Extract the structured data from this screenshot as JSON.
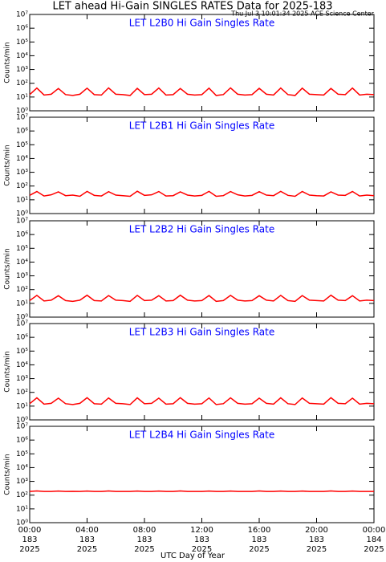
{
  "header": {
    "title": "LET ahead Hi-Gain SINGLES RATES Data for 2025-183",
    "timestamp": "Thu Jul  3 10:01:34 2025 ACE Science Center"
  },
  "x_axis": {
    "label": "UTC Day of Year",
    "xlim": [
      0,
      24
    ],
    "xticks": [
      {
        "value": 0,
        "label": "00:00"
      },
      {
        "value": 4,
        "label": "04:00"
      },
      {
        "value": 8,
        "label": "08:00"
      },
      {
        "value": 12,
        "label": "12:00"
      },
      {
        "value": 16,
        "label": "16:00"
      },
      {
        "value": 20,
        "label": "20:00"
      },
      {
        "value": 24,
        "label": "00:00"
      }
    ],
    "xtick_days": [
      "183",
      "183",
      "183",
      "183",
      "183",
      "183",
      "184"
    ],
    "xtick_years": [
      "2025",
      "2025",
      "2025",
      "2025",
      "2025",
      "2025",
      "2025"
    ]
  },
  "chart_data": [
    {
      "type": "line",
      "title": "LET L2B0 Hi Gain Singles Rate",
      "ylabel": "Counts/min",
      "log_y": true,
      "ylim": [
        1,
        10000000
      ],
      "yticks": [
        {
          "value": 1,
          "label": "10⁰"
        },
        {
          "value": 10,
          "label": "10¹"
        },
        {
          "value": 100,
          "label": "10²"
        },
        {
          "value": 1000,
          "label": "10³"
        },
        {
          "value": 10000,
          "label": "10⁴"
        },
        {
          "value": 100000,
          "label": "10⁵"
        },
        {
          "value": 1000000,
          "label": "10⁶"
        },
        {
          "value": 10000000,
          "label": "10⁷"
        }
      ],
      "x": [
        0,
        0.5,
        1,
        1.5,
        2,
        2.5,
        3,
        3.5,
        4,
        4.5,
        5,
        5.5,
        6,
        6.5,
        7,
        7.5,
        8,
        8.5,
        9,
        9.5,
        10,
        10.5,
        11,
        11.5,
        12,
        12.5,
        13,
        13.5,
        14,
        14.5,
        15,
        15.5,
        16,
        16.5,
        17,
        17.5,
        18,
        18.5,
        19,
        19.5,
        20,
        20.5,
        21,
        21.5,
        22,
        22.5,
        23,
        23.5,
        24
      ],
      "series": [
        {
          "color": "#ff0000",
          "values": [
            15,
            45,
            14,
            16,
            42,
            15,
            13,
            16,
            44,
            15,
            14,
            46,
            16,
            15,
            13,
            43,
            15,
            16,
            45,
            14,
            15,
            42,
            16,
            14,
            15,
            44,
            13,
            15,
            46,
            16,
            14,
            15,
            43,
            16,
            14,
            45,
            15,
            13,
            44,
            16,
            15,
            14,
            42,
            16,
            15,
            45,
            14,
            16,
            15
          ]
        }
      ]
    },
    {
      "type": "line",
      "title": "LET L2B1 Hi Gain Singles Rate",
      "ylabel": "Counts/min",
      "log_y": true,
      "ylim": [
        1,
        10000000
      ],
      "yticks": [
        {
          "value": 1,
          "label": "10⁰"
        },
        {
          "value": 10,
          "label": "10¹"
        },
        {
          "value": 100,
          "label": "10²"
        },
        {
          "value": 1000,
          "label": "10³"
        },
        {
          "value": 10000,
          "label": "10⁴"
        },
        {
          "value": 100000,
          "label": "10⁵"
        },
        {
          "value": 1000000,
          "label": "10⁶"
        },
        {
          "value": 10000000,
          "label": "10⁷"
        }
      ],
      "x": [
        0,
        0.5,
        1,
        1.5,
        2,
        2.5,
        3,
        3.5,
        4,
        4.5,
        5,
        5.5,
        6,
        6.5,
        7,
        7.5,
        8,
        8.5,
        9,
        9.5,
        10,
        10.5,
        11,
        11.5,
        12,
        12.5,
        13,
        13.5,
        14,
        14.5,
        15,
        15.5,
        16,
        16.5,
        17,
        17.5,
        18,
        18.5,
        19,
        19.5,
        20,
        20.5,
        21,
        21.5,
        22,
        22.5,
        23,
        23.5,
        24
      ],
      "series": [
        {
          "color": "#ff0000",
          "values": [
            21,
            40,
            19,
            23,
            38,
            20,
            22,
            18,
            41,
            21,
            19,
            39,
            22,
            20,
            18,
            42,
            21,
            23,
            40,
            19,
            20,
            38,
            22,
            19,
            21,
            41,
            18,
            20,
            40,
            23,
            19,
            21,
            39,
            22,
            20,
            41,
            21,
            18,
            40,
            22,
            20,
            19,
            38,
            22,
            21,
            40,
            19,
            22,
            20
          ]
        }
      ]
    },
    {
      "type": "line",
      "title": "LET L2B2 Hi Gain Singles Rate",
      "ylabel": "Counts/min",
      "log_y": true,
      "ylim": [
        1,
        10000000
      ],
      "yticks": [
        {
          "value": 1,
          "label": "10⁰"
        },
        {
          "value": 10,
          "label": "10¹"
        },
        {
          "value": 100,
          "label": "10²"
        },
        {
          "value": 1000,
          "label": "10³"
        },
        {
          "value": 10000,
          "label": "10⁴"
        },
        {
          "value": 100000,
          "label": "10⁵"
        },
        {
          "value": 1000000,
          "label": "10⁶"
        },
        {
          "value": 10000000,
          "label": "10⁷"
        }
      ],
      "x": [
        0,
        0.5,
        1,
        1.5,
        2,
        2.5,
        3,
        3.5,
        4,
        4.5,
        5,
        5.5,
        6,
        6.5,
        7,
        7.5,
        8,
        8.5,
        9,
        9.5,
        10,
        10.5,
        11,
        11.5,
        12,
        12.5,
        13,
        13.5,
        14,
        14.5,
        15,
        15.5,
        16,
        16.5,
        17,
        17.5,
        18,
        18.5,
        19,
        19.5,
        20,
        20.5,
        21,
        21.5,
        22,
        22.5,
        23,
        23.5,
        24
      ],
      "series": [
        {
          "color": "#ff0000",
          "values": [
            16,
            38,
            15,
            17,
            36,
            16,
            14,
            17,
            39,
            16,
            15,
            37,
            17,
            16,
            14,
            38,
            16,
            17,
            36,
            15,
            16,
            39,
            17,
            15,
            16,
            37,
            14,
            16,
            38,
            17,
            15,
            16,
            36,
            17,
            15,
            38,
            16,
            14,
            37,
            17,
            16,
            15,
            39,
            17,
            16,
            36,
            15,
            17,
            16
          ]
        }
      ]
    },
    {
      "type": "line",
      "title": "LET L2B3 Hi Gain Singles Rate",
      "ylabel": "Counts/min",
      "log_y": true,
      "ylim": [
        1,
        10000000
      ],
      "yticks": [
        {
          "value": 1,
          "label": "10⁰"
        },
        {
          "value": 10,
          "label": "10¹"
        },
        {
          "value": 100,
          "label": "10²"
        },
        {
          "value": 1000,
          "label": "10³"
        },
        {
          "value": 10000,
          "label": "10⁴"
        },
        {
          "value": 100000,
          "label": "10⁵"
        },
        {
          "value": 1000000,
          "label": "10⁶"
        },
        {
          "value": 10000000,
          "label": "10⁷"
        }
      ],
      "x": [
        0,
        0.5,
        1,
        1.5,
        2,
        2.5,
        3,
        3.5,
        4,
        4.5,
        5,
        5.5,
        6,
        6.5,
        7,
        7.5,
        8,
        8.5,
        9,
        9.5,
        10,
        10.5,
        11,
        11.5,
        12,
        12.5,
        13,
        13.5,
        14,
        14.5,
        15,
        15.5,
        16,
        16.5,
        17,
        17.5,
        18,
        18.5,
        19,
        19.5,
        20,
        20.5,
        21,
        21.5,
        22,
        22.5,
        23,
        23.5,
        24
      ],
      "series": [
        {
          "color": "#ff0000",
          "values": [
            15,
            40,
            14,
            16,
            38,
            15,
            13,
            16,
            41,
            15,
            14,
            39,
            16,
            15,
            13,
            40,
            15,
            16,
            38,
            14,
            15,
            41,
            16,
            14,
            15,
            39,
            13,
            15,
            40,
            16,
            14,
            15,
            38,
            16,
            14,
            40,
            15,
            13,
            39,
            16,
            15,
            14,
            41,
            16,
            15,
            38,
            14,
            16,
            15
          ]
        }
      ]
    },
    {
      "type": "line",
      "title": "LET L2B4 Hi Gain Singles Rate",
      "ylabel": "Counts/min",
      "log_y": true,
      "ylim": [
        1,
        10000000
      ],
      "yticks": [
        {
          "value": 1,
          "label": "10⁰"
        },
        {
          "value": 10,
          "label": "10¹"
        },
        {
          "value": 100,
          "label": "10²"
        },
        {
          "value": 1000,
          "label": "10³"
        },
        {
          "value": 10000,
          "label": "10⁴"
        },
        {
          "value": 100000,
          "label": "10⁵"
        },
        {
          "value": 1000000,
          "label": "10⁶"
        },
        {
          "value": 10000000,
          "label": "10⁷"
        }
      ],
      "x": [
        0,
        0.5,
        1,
        1.5,
        2,
        2.5,
        3,
        3.5,
        4,
        4.5,
        5,
        5.5,
        6,
        6.5,
        7,
        7.5,
        8,
        8.5,
        9,
        9.5,
        10,
        10.5,
        11,
        11.5,
        12,
        12.5,
        13,
        13.5,
        14,
        14.5,
        15,
        15.5,
        16,
        16.5,
        17,
        17.5,
        18,
        18.5,
        19,
        19.5,
        20,
        20.5,
        21,
        21.5,
        22,
        22.5,
        23,
        23.5,
        24
      ],
      "series": [
        {
          "color": "#ff0000",
          "values": [
            185,
            200,
            186,
            184,
            198,
            185,
            187,
            184,
            199,
            186,
            185,
            200,
            184,
            186,
            185,
            198,
            184,
            186,
            199,
            185,
            184,
            200,
            186,
            185,
            184,
            198,
            186,
            185,
            199,
            184,
            186,
            185,
            200,
            186,
            184,
            198,
            185,
            186,
            199,
            184,
            185,
            186,
            200,
            184,
            186,
            198,
            185,
            184,
            186
          ]
        }
      ]
    }
  ]
}
